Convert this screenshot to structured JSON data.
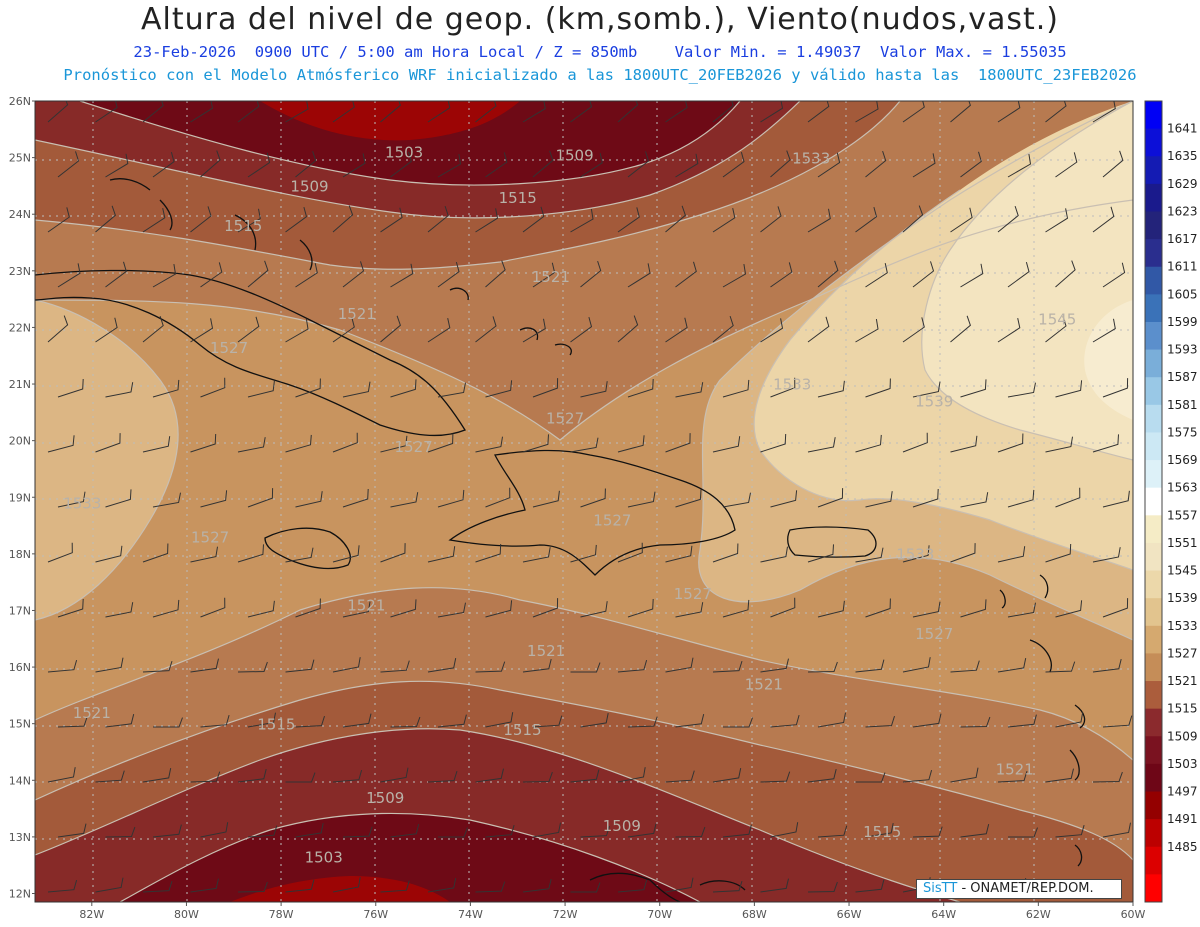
{
  "header": {
    "title": "Altura del nivel de geop. (km,somb.), Viento(nudos,vast.)",
    "subtitle_line1": "23-Feb-2026  0900 UTC / 5:00 am Hora Local / Z = 850mb    Valor Min. = 1.49037  Valor Max. = 1.55035",
    "subtitle_line2": "Pronóstico con el Modelo Atmósferico WRF inicializado a las 1800UTC_20FEB2026 y válido hasta las  1800UTC_23FEB2026"
  },
  "map": {
    "lat_labels": [
      "26N",
      "25N",
      "24N",
      "23N",
      "22N",
      "21N",
      "20N",
      "19N",
      "18N",
      "17N",
      "16N",
      "15N",
      "14N",
      "13N",
      "12N"
    ],
    "lon_labels": [
      "82W",
      "80W",
      "78W",
      "76W",
      "74W",
      "72W",
      "70W",
      "68W",
      "66W",
      "64W",
      "62W",
      "60W"
    ],
    "contour_labels": [
      {
        "text": "1503",
        "lon": -75.4,
        "lat": 25.0
      },
      {
        "text": "1509",
        "lon": -71.8,
        "lat": 24.95
      },
      {
        "text": "1509",
        "lon": -77.4,
        "lat": 24.4
      },
      {
        "text": "1515",
        "lon": -73.0,
        "lat": 24.2
      },
      {
        "text": "1515",
        "lon": -78.8,
        "lat": 23.7
      },
      {
        "text": "1521",
        "lon": -72.3,
        "lat": 22.8
      },
      {
        "text": "1521",
        "lon": -76.4,
        "lat": 22.15
      },
      {
        "text": "1527",
        "lon": -79.1,
        "lat": 21.55
      },
      {
        "text": "1533",
        "lon": -66.8,
        "lat": 24.9
      },
      {
        "text": "1545",
        "lon": -61.6,
        "lat": 22.05
      },
      {
        "text": "1533",
        "lon": -67.2,
        "lat": 20.9
      },
      {
        "text": "1539",
        "lon": -64.2,
        "lat": 20.6
      },
      {
        "text": "1527",
        "lon": -72.0,
        "lat": 20.3
      },
      {
        "text": "1527",
        "lon": -75.2,
        "lat": 19.8
      },
      {
        "text": "1533",
        "lon": -82.2,
        "lat": 18.8
      },
      {
        "text": "1527",
        "lon": -79.5,
        "lat": 18.2
      },
      {
        "text": "1527",
        "lon": -71.0,
        "lat": 18.5
      },
      {
        "text": "1533",
        "lon": -64.6,
        "lat": 17.9
      },
      {
        "text": "1527",
        "lon": -69.3,
        "lat": 17.2
      },
      {
        "text": "1521",
        "lon": -76.2,
        "lat": 17.0
      },
      {
        "text": "1521",
        "lon": -72.4,
        "lat": 16.2
      },
      {
        "text": "1527",
        "lon": -64.2,
        "lat": 16.5
      },
      {
        "text": "1521",
        "lon": -67.8,
        "lat": 15.6
      },
      {
        "text": "1521",
        "lon": -82.0,
        "lat": 15.1
      },
      {
        "text": "1515",
        "lon": -78.1,
        "lat": 14.9
      },
      {
        "text": "1515",
        "lon": -72.9,
        "lat": 14.8
      },
      {
        "text": "1521",
        "lon": -62.5,
        "lat": 14.1
      },
      {
        "text": "1509",
        "lon": -75.8,
        "lat": 13.6
      },
      {
        "text": "1509",
        "lon": -70.8,
        "lat": 13.1
      },
      {
        "text": "1515",
        "lon": -65.3,
        "lat": 13.0
      },
      {
        "text": "1503",
        "lon": -77.1,
        "lat": 12.55
      }
    ]
  },
  "colorbar": {
    "labels": [
      "1641",
      "1635",
      "1629",
      "1623",
      "1617",
      "1611",
      "1605",
      "1599",
      "1593",
      "1587",
      "1581",
      "1575",
      "1569",
      "1563",
      "1557",
      "1551",
      "1545",
      "1539",
      "1533",
      "1527",
      "1521",
      "1515",
      "1509",
      "1503",
      "1497",
      "1491",
      "1485"
    ],
    "colors": [
      "#0000f5",
      "#0c0fd8",
      "#141bb3",
      "#1a1a8c",
      "#23237a",
      "#2a2e8e",
      "#3158a6",
      "#3a72b8",
      "#5b8fcc",
      "#7aaed9",
      "#99c8e6",
      "#b8dcef",
      "#cce8f4",
      "#ddf1f8",
      "#ffffff",
      "#f5ecc6",
      "#f1e4c2",
      "#ecd8aa",
      "#e2c48e",
      "#d5a96f",
      "#c58d58",
      "#ab5d3c",
      "#8b2a2d",
      "#7a1220",
      "#6e0617",
      "#940000",
      "#bc0000",
      "#dc0000",
      "#ff0000"
    ]
  },
  "logo": {
    "brand": "SisTT",
    "text": "- ONAMET/REP.DOM."
  }
}
